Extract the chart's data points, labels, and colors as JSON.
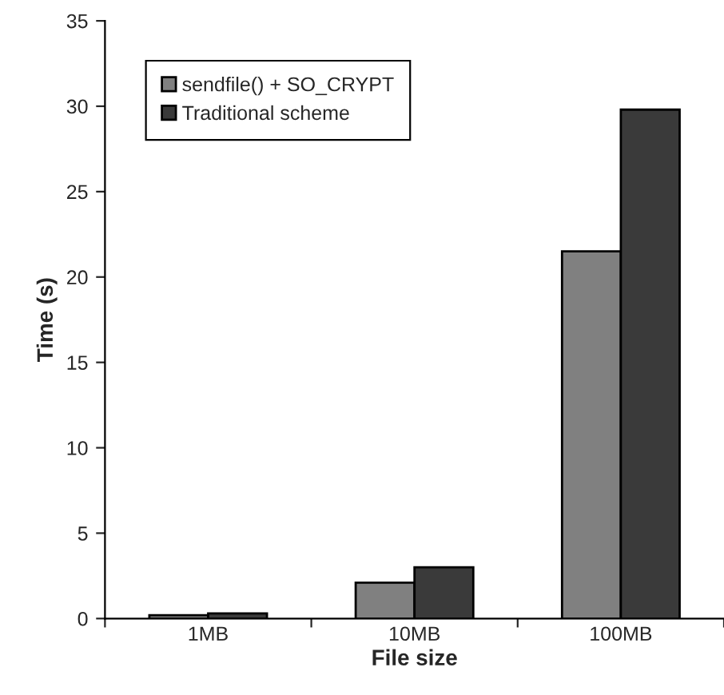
{
  "chart_data": {
    "type": "bar",
    "xlabel": "File size",
    "ylabel": "Time (s)",
    "categories": [
      "1MB",
      "10MB",
      "100MB"
    ],
    "series": [
      {
        "name": "sendfile() + SO_CRYPT",
        "color": "#808080",
        "values": [
          0.2,
          2.1,
          21.5
        ]
      },
      {
        "name": "Traditional scheme",
        "color": "#3a3a3a",
        "values": [
          0.3,
          3.0,
          29.8
        ]
      }
    ],
    "ylim": [
      0,
      35
    ],
    "yticks": [
      0,
      5,
      10,
      15,
      20,
      25,
      30,
      35
    ],
    "grid": false,
    "legend": "top left"
  }
}
